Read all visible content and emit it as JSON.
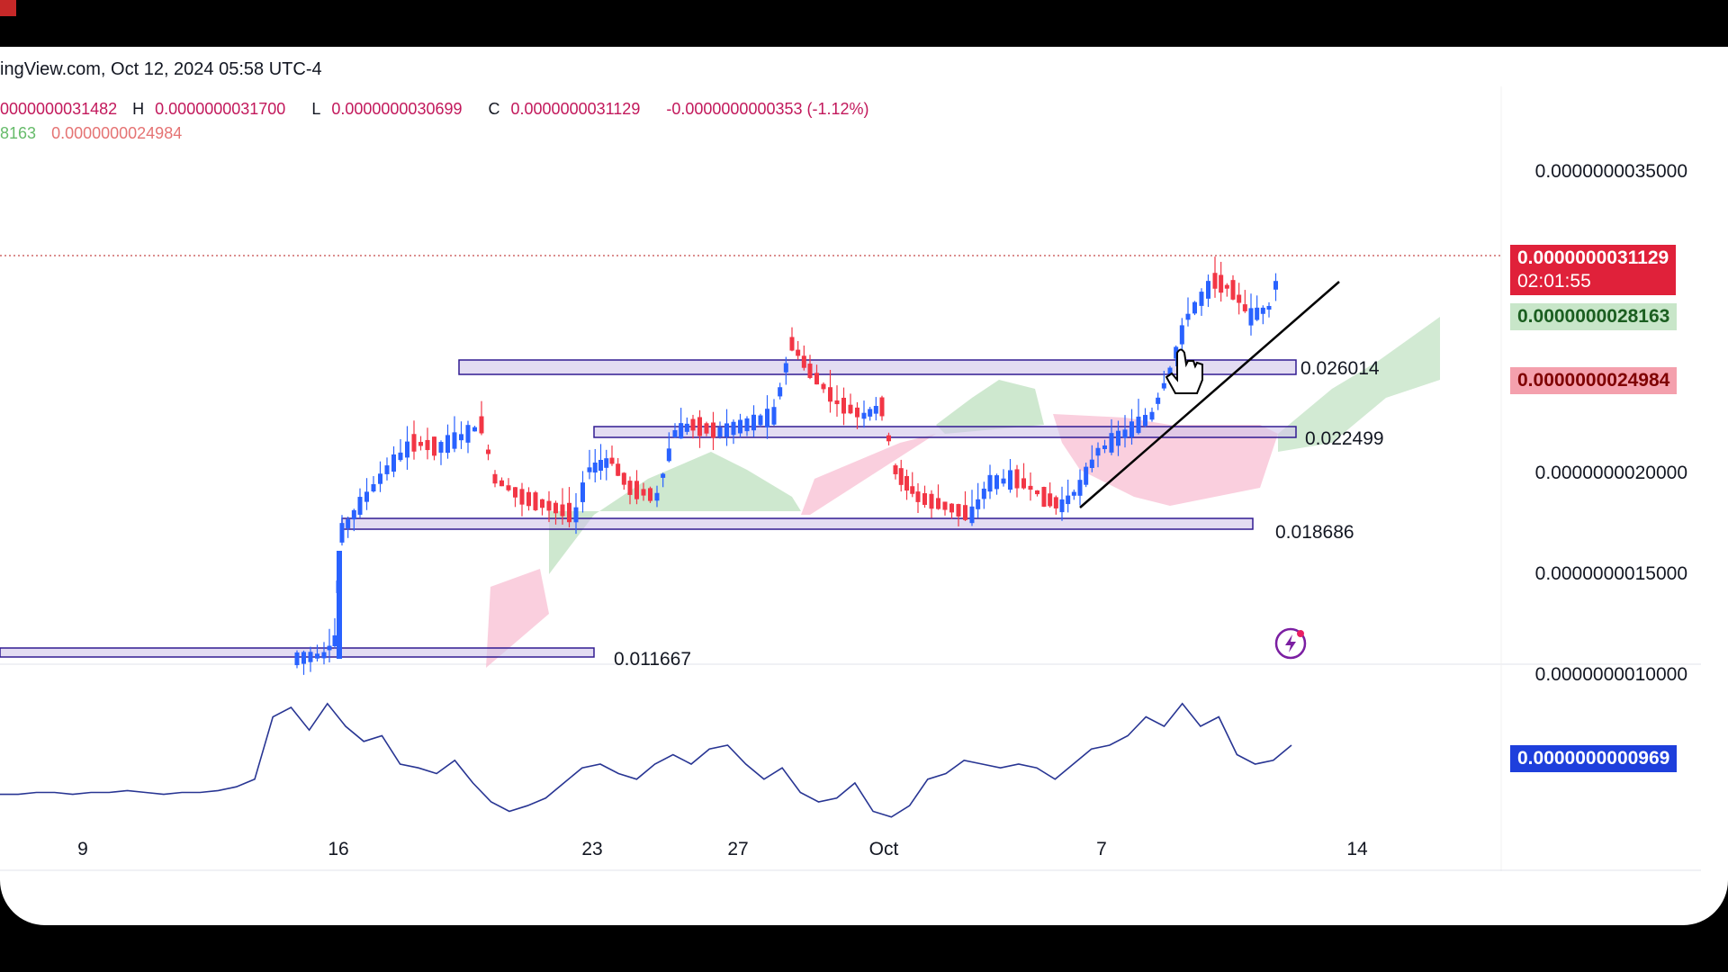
{
  "header": {
    "source_text": "ingView.com, Oct 12, 2024 05:58 UTC-4"
  },
  "ohlc": {
    "open_text": "0000000031482",
    "high_label": "H",
    "high_value": "0.0000000031700",
    "low_label": "L",
    "low_value": "0.0000000030699",
    "close_label": "C",
    "close_value": "0.0000000031129",
    "change_text": "-0.0000000000353 (-1.12%)"
  },
  "indicator_values": {
    "green_text": "8163",
    "red_text": "0.0000000024984"
  },
  "colors": {
    "up_candle": "#2962ff",
    "down_candle": "#f23645",
    "cloud_green": "#a5d6a7",
    "cloud_red": "#f8bbd0",
    "zone_fill": "#d1c4e9",
    "zone_stroke": "#311b92",
    "oscillator": "#283593",
    "last_price_tag": "#e0213a",
    "green_tag": "#c8e6c9",
    "red_tag": "#f4a0ad",
    "osc_tag": "#1e3fdc"
  },
  "price_tags": {
    "last_price": "0.0000000031129",
    "countdown": "02:01:55",
    "green_level": "0.0000000028163",
    "red_level": "0.0000000024984",
    "oscillator_value": "0.0000000000969"
  },
  "chart_data": {
    "type": "candlestick",
    "title": "",
    "y_axis_ticks": [
      "0.0000000035000",
      "0.0000000020000",
      "0.0000000015000",
      "0.0000000010000"
    ],
    "x_axis_ticks": [
      "9",
      "16",
      "23",
      "27",
      "Oct",
      "7",
      "14"
    ],
    "levels": [
      {
        "label": "0.026014",
        "value": 0.026014
      },
      {
        "label": "0.022499",
        "value": 0.022499
      },
      {
        "label": "0.018686",
        "value": 0.018686
      },
      {
        "label": "0.011667",
        "value": 0.011667
      }
    ],
    "trendline": "rising support line from Oct 6 to Oct 12",
    "oscillator": {
      "values": [
        0.14,
        0.14,
        0.15,
        0.15,
        0.14,
        0.15,
        0.15,
        0.16,
        0.15,
        0.14,
        0.15,
        0.15,
        0.16,
        0.18,
        0.22,
        0.55,
        0.6,
        0.48,
        0.62,
        0.5,
        0.42,
        0.45,
        0.3,
        0.28,
        0.25,
        0.32,
        0.2,
        0.1,
        0.05,
        0.08,
        0.12,
        0.2,
        0.28,
        0.3,
        0.25,
        0.22,
        0.3,
        0.35,
        0.3,
        0.38,
        0.4,
        0.3,
        0.22,
        0.28,
        0.15,
        0.1,
        0.12,
        0.2,
        0.05,
        0.02,
        0.08,
        0.22,
        0.25,
        0.32,
        0.3,
        0.28,
        0.3,
        0.28,
        0.22,
        0.3,
        0.38,
        0.4,
        0.45,
        0.55,
        0.5,
        0.62,
        0.5,
        0.55,
        0.35,
        0.3,
        0.32,
        0.4
      ]
    }
  }
}
